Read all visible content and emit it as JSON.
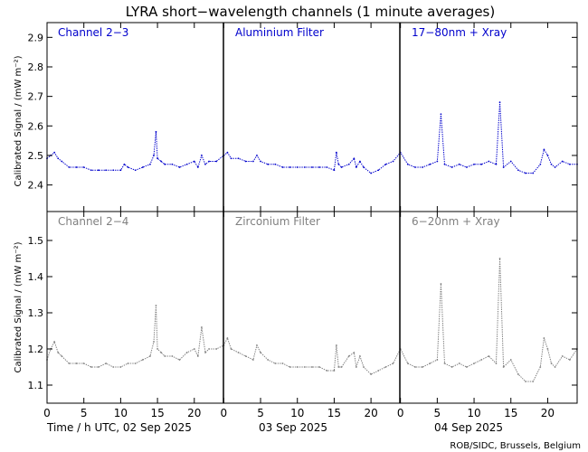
{
  "figure": {
    "title": "LYRA short−wavelength channels (1 minute averages)",
    "ylabel": "Calibrated Signal  / (mW m⁻²)",
    "xlabels": [
      "Time / h UTC, 02 Sep 2025",
      "03 Sep 2025",
      "04 Sep 2025"
    ],
    "credit": "ROB/SIDC, Brussels, Belgium",
    "colors": {
      "top": "#0000cc",
      "bottom": "#808080",
      "axes": "#000000"
    }
  },
  "chart_data": [
    {
      "type": "scatter",
      "row": "top",
      "title": "",
      "xlabel": "Time / h UTC",
      "ylabel": "Calibrated Signal  / (mW m⁻²)",
      "xlim": [
        0,
        72
      ],
      "ylim": [
        2.31,
        2.95
      ],
      "yticks": [
        2.4,
        2.5,
        2.6,
        2.7,
        2.8,
        2.9
      ],
      "xticks": [
        0,
        5,
        10,
        15,
        20,
        24,
        29,
        34,
        39,
        44,
        48,
        53,
        58,
        63,
        68
      ],
      "xtick_labels": [
        "0",
        "5",
        "10",
        "15",
        "20",
        "0",
        "5",
        "10",
        "15",
        "20",
        "0",
        "5",
        "10",
        "15",
        "20"
      ],
      "grid": false,
      "legend": "none",
      "annotations": [
        "Channel 2−3",
        "Aluminium Filter",
        "17−80nm + Xray"
      ],
      "color": "#0000cc",
      "series": [
        {
          "x": [
            0,
            0.5,
            1,
            1.5,
            2,
            3,
            4,
            5,
            6,
            7,
            8,
            9,
            10,
            10.5,
            11,
            12,
            13,
            14,
            14.5,
            14.8,
            15,
            15.5,
            16,
            17,
            18,
            19,
            20,
            20.5,
            21,
            21.5,
            22,
            23,
            24,
            24.5,
            25,
            26,
            27,
            28,
            28.5,
            29,
            30,
            31,
            32,
            33,
            34,
            35,
            36,
            37,
            38,
            39,
            39.3,
            39.6,
            40,
            41,
            41.7,
            42,
            42.5,
            43,
            44,
            45,
            46,
            47,
            48,
            49,
            50,
            51,
            52,
            53,
            53.5,
            54,
            55,
            56,
            57,
            58,
            59,
            60,
            61,
            61.5,
            62,
            63,
            64,
            65,
            66,
            67,
            67.5,
            68,
            68.5,
            69,
            70,
            71,
            72
          ],
          "y": [
            2.49,
            2.5,
            2.51,
            2.49,
            2.48,
            2.46,
            2.46,
            2.46,
            2.45,
            2.45,
            2.45,
            2.45,
            2.45,
            2.47,
            2.46,
            2.45,
            2.46,
            2.47,
            2.5,
            2.58,
            2.49,
            2.48,
            2.47,
            2.47,
            2.46,
            2.47,
            2.48,
            2.46,
            2.5,
            2.47,
            2.48,
            2.48,
            2.5,
            2.51,
            2.49,
            2.49,
            2.48,
            2.48,
            2.5,
            2.48,
            2.47,
            2.47,
            2.46,
            2.46,
            2.46,
            2.46,
            2.46,
            2.46,
            2.46,
            2.45,
            2.51,
            2.47,
            2.46,
            2.47,
            2.49,
            2.46,
            2.48,
            2.46,
            2.44,
            2.45,
            2.47,
            2.48,
            2.51,
            2.47,
            2.46,
            2.46,
            2.47,
            2.48,
            2.64,
            2.47,
            2.46,
            2.47,
            2.46,
            2.47,
            2.47,
            2.48,
            2.47,
            2.68,
            2.46,
            2.48,
            2.45,
            2.44,
            2.44,
            2.47,
            2.52,
            2.5,
            2.47,
            2.46,
            2.48,
            2.47,
            2.47
          ]
        }
      ]
    },
    {
      "type": "scatter",
      "row": "bottom",
      "title": "",
      "xlabel": "Time / h UTC",
      "ylabel": "Calibrated Signal  / (mW m⁻²)",
      "xlim": [
        0,
        72
      ],
      "ylim": [
        1.05,
        1.58
      ],
      "yticks": [
        1.1,
        1.2,
        1.3,
        1.4,
        1.5
      ],
      "xticks": [
        0,
        5,
        10,
        15,
        20,
        24,
        29,
        34,
        39,
        44,
        48,
        53,
        58,
        63,
        68
      ],
      "xtick_labels": [
        "0",
        "5",
        "10",
        "15",
        "20",
        "0",
        "5",
        "10",
        "15",
        "20",
        "0",
        "5",
        "10",
        "15",
        "20"
      ],
      "grid": false,
      "legend": "none",
      "annotations": [
        "Channel 2−4",
        "Zirconium Filter",
        "6−20nm + Xray"
      ],
      "color": "#808080",
      "series": [
        {
          "x": [
            0,
            0.5,
            1,
            1.5,
            2,
            3,
            4,
            5,
            6,
            7,
            8,
            9,
            10,
            11,
            12,
            13,
            14,
            14.5,
            14.8,
            15,
            15.5,
            16,
            17,
            18,
            19,
            20,
            20.5,
            21,
            21.5,
            22,
            23,
            24,
            24.5,
            25,
            26,
            27,
            28,
            28.5,
            29,
            30,
            31,
            32,
            33,
            34,
            35,
            36,
            37,
            38,
            39,
            39.3,
            39.6,
            40,
            41,
            41.7,
            42,
            42.5,
            43,
            44,
            45,
            46,
            47,
            48,
            49,
            50,
            51,
            52,
            53,
            53.5,
            54,
            55,
            56,
            57,
            58,
            59,
            60,
            61,
            61.5,
            62,
            63,
            64,
            65,
            66,
            67,
            67.5,
            68,
            68.5,
            69,
            70,
            71,
            72
          ],
          "y": [
            1.17,
            1.2,
            1.22,
            1.19,
            1.18,
            1.16,
            1.16,
            1.16,
            1.15,
            1.15,
            1.16,
            1.15,
            1.15,
            1.16,
            1.16,
            1.17,
            1.18,
            1.22,
            1.32,
            1.2,
            1.19,
            1.18,
            1.18,
            1.17,
            1.19,
            1.2,
            1.18,
            1.26,
            1.19,
            1.2,
            1.2,
            1.21,
            1.23,
            1.2,
            1.19,
            1.18,
            1.17,
            1.21,
            1.19,
            1.17,
            1.16,
            1.16,
            1.15,
            1.15,
            1.15,
            1.15,
            1.15,
            1.14,
            1.14,
            1.21,
            1.15,
            1.15,
            1.18,
            1.19,
            1.15,
            1.18,
            1.15,
            1.13,
            1.14,
            1.15,
            1.16,
            1.2,
            1.16,
            1.15,
            1.15,
            1.16,
            1.17,
            1.38,
            1.16,
            1.15,
            1.16,
            1.15,
            1.16,
            1.17,
            1.18,
            1.16,
            1.45,
            1.15,
            1.17,
            1.13,
            1.11,
            1.11,
            1.15,
            1.23,
            1.2,
            1.16,
            1.15,
            1.18,
            1.17,
            1.2
          ]
        }
      ]
    }
  ]
}
